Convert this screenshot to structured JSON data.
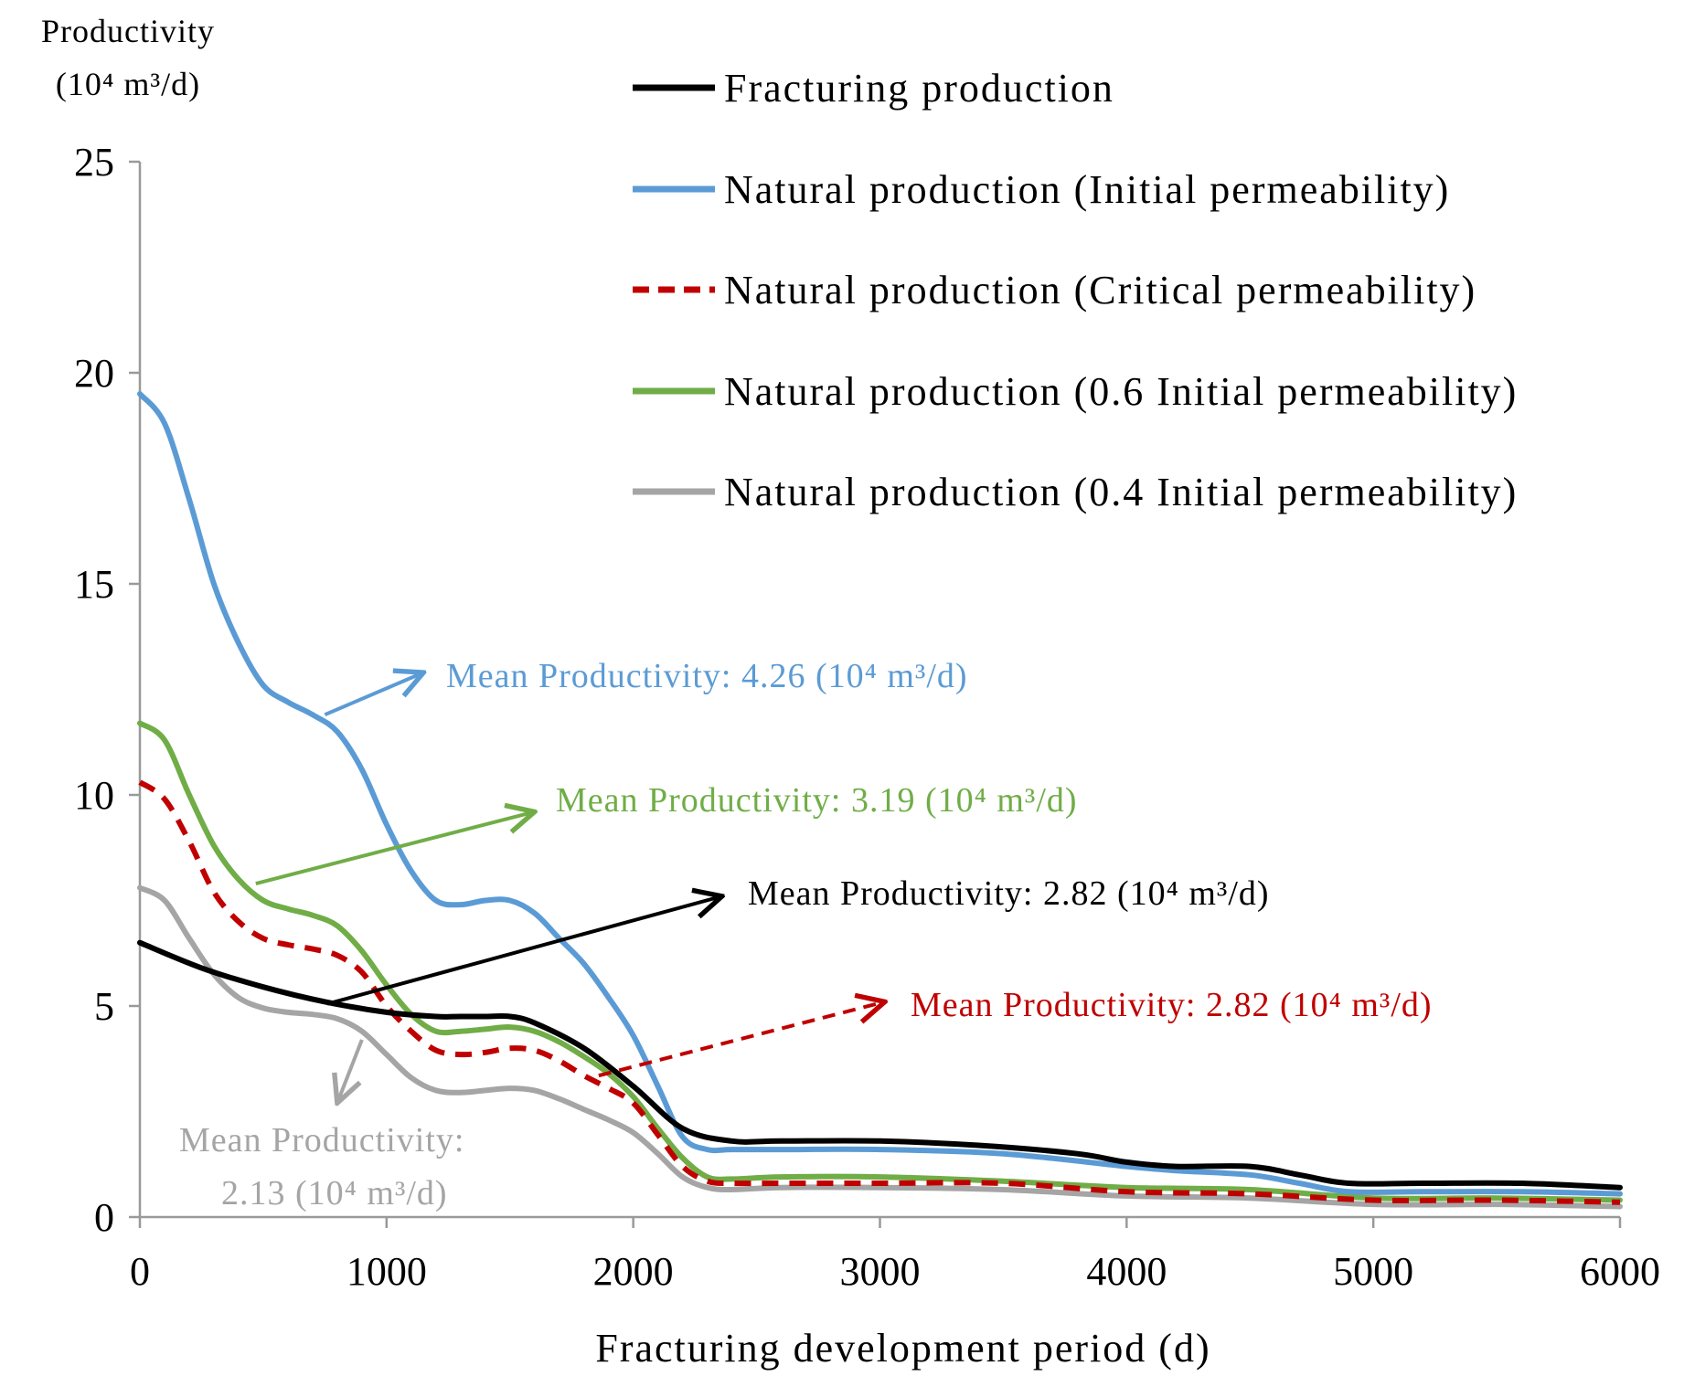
{
  "chart_data": {
    "type": "line",
    "title": "",
    "ylabel_line1": "Productivity",
    "ylabel_unit": "(10⁴ m³/d)",
    "xlabel": "Fracturing development period (d)",
    "xlim": [
      0,
      6000
    ],
    "ylim": [
      0,
      25
    ],
    "x_ticks": [
      "0",
      "1000",
      "2000",
      "3000",
      "4000",
      "5000",
      "6000"
    ],
    "y_ticks": [
      "0",
      "5",
      "10",
      "15",
      "20",
      "25"
    ],
    "grid": false,
    "legend_position": "top-right",
    "series": [
      {
        "name": "Fracturing production",
        "color": "#000000",
        "dashed": false,
        "x": [
          0,
          250,
          500,
          750,
          1000,
          1200,
          1300,
          1400,
          1500,
          1600,
          1800,
          2000,
          2200,
          2400,
          2600,
          3000,
          3400,
          3800,
          4000,
          4200,
          4500,
          4700,
          4900,
          5200,
          5600,
          6000
        ],
        "y": [
          6.5,
          5.9,
          5.45,
          5.1,
          4.85,
          4.75,
          4.75,
          4.75,
          4.75,
          4.6,
          4.0,
          3.1,
          2.1,
          1.8,
          1.8,
          1.8,
          1.7,
          1.5,
          1.3,
          1.2,
          1.2,
          1.0,
          0.8,
          0.8,
          0.8,
          0.7
        ]
      },
      {
        "name": "Natural production (Initial permeability)",
        "color": "#5b9bd5",
        "dashed": false,
        "x": [
          0,
          100,
          200,
          300,
          400,
          500,
          600,
          700,
          800,
          900,
          1000,
          1100,
          1200,
          1300,
          1400,
          1500,
          1600,
          1700,
          1800,
          1900,
          2000,
          2100,
          2200,
          2300,
          2400,
          2600,
          3000,
          3500,
          4000,
          4200,
          4500,
          4700,
          4900,
          5200,
          5600,
          6000
        ],
        "y": [
          19.5,
          18.8,
          17.0,
          15.0,
          13.6,
          12.6,
          12.2,
          11.9,
          11.5,
          10.6,
          9.3,
          8.2,
          7.5,
          7.4,
          7.5,
          7.5,
          7.2,
          6.6,
          6.0,
          5.2,
          4.3,
          3.1,
          1.9,
          1.6,
          1.6,
          1.6,
          1.6,
          1.5,
          1.2,
          1.1,
          1.0,
          0.8,
          0.6,
          0.6,
          0.6,
          0.55
        ]
      },
      {
        "name": "Natural production (Critical permeability)",
        "color": "#c00000",
        "dashed": true,
        "x": [
          0,
          100,
          200,
          300,
          400,
          500,
          600,
          700,
          800,
          900,
          1000,
          1100,
          1200,
          1300,
          1400,
          1500,
          1600,
          1700,
          1800,
          1900,
          2000,
          2100,
          2200,
          2300,
          2400,
          2600,
          3000,
          3500,
          4000,
          4500,
          5000,
          5500,
          6000
        ],
        "y": [
          10.3,
          9.9,
          8.9,
          7.7,
          7.0,
          6.6,
          6.45,
          6.35,
          6.2,
          5.8,
          5.0,
          4.4,
          3.95,
          3.85,
          3.9,
          4.0,
          3.95,
          3.7,
          3.35,
          3.05,
          2.7,
          1.95,
          1.2,
          0.85,
          0.8,
          0.8,
          0.8,
          0.8,
          0.6,
          0.55,
          0.4,
          0.4,
          0.35
        ]
      },
      {
        "name": "Natural production (0.6 Initial permeability)",
        "color": "#70ad47",
        "dashed": false,
        "x": [
          0,
          100,
          200,
          300,
          400,
          500,
          600,
          700,
          800,
          900,
          1000,
          1100,
          1200,
          1300,
          1400,
          1500,
          1600,
          1700,
          1800,
          1900,
          2000,
          2100,
          2200,
          2300,
          2400,
          2600,
          3000,
          3500,
          4000,
          4500,
          5000,
          5500,
          6000
        ],
        "y": [
          11.7,
          11.3,
          10.0,
          8.8,
          8.0,
          7.5,
          7.3,
          7.15,
          6.9,
          6.3,
          5.5,
          4.8,
          4.4,
          4.4,
          4.45,
          4.5,
          4.4,
          4.15,
          3.8,
          3.4,
          2.85,
          2.1,
          1.4,
          0.95,
          0.9,
          0.95,
          0.95,
          0.85,
          0.7,
          0.65,
          0.45,
          0.45,
          0.4
        ]
      },
      {
        "name": "Natural production (0.4 Initial permeability)",
        "color": "#a5a5a5",
        "dashed": false,
        "x": [
          0,
          100,
          200,
          300,
          400,
          500,
          600,
          700,
          800,
          900,
          1000,
          1100,
          1200,
          1300,
          1400,
          1500,
          1600,
          1700,
          1800,
          1900,
          2000,
          2100,
          2200,
          2300,
          2400,
          2600,
          3000,
          3500,
          4000,
          4500,
          5000,
          5500,
          6000
        ],
        "y": [
          7.8,
          7.5,
          6.6,
          5.75,
          5.2,
          4.95,
          4.85,
          4.8,
          4.7,
          4.4,
          3.85,
          3.3,
          3.0,
          2.95,
          3.0,
          3.05,
          3.0,
          2.8,
          2.55,
          2.3,
          2.0,
          1.5,
          0.95,
          0.7,
          0.65,
          0.7,
          0.7,
          0.65,
          0.5,
          0.45,
          0.3,
          0.3,
          0.25
        ]
      }
    ],
    "annotations": [
      {
        "series": 1,
        "text": "Mean Productivity: 4.26 (10⁴ m³/d)",
        "color": "#5b9bd5",
        "dashed": false,
        "from": [
          750,
          11.9
        ],
        "to": [
          1150,
          12.9
        ]
      },
      {
        "series": 3,
        "text": "Mean Productivity: 3.19 (10⁴ m³/d)",
        "color": "#70ad47",
        "dashed": false,
        "from": [
          470,
          7.9
        ],
        "to": [
          1600,
          9.6
        ]
      },
      {
        "series": 0,
        "text": "Mean Productivity: 2.82 (10⁴ m³/d)",
        "color": "#000000",
        "dashed": false,
        "from": [
          760,
          5.05
        ],
        "to": [
          2360,
          7.6
        ]
      },
      {
        "series": 2,
        "text": "Mean Productivity: 2.82 (10⁴ m³/d)",
        "color": "#c00000",
        "dashed": true,
        "from": [
          1860,
          3.35
        ],
        "to": [
          3020,
          5.1
        ]
      },
      {
        "series": 4,
        "text_line1": "Mean Productivity:",
        "text_line2": "2.13 (10⁴ m³/d)",
        "color": "#a5a5a5",
        "dashed": false,
        "from": [
          900,
          4.2
        ],
        "to": [
          800,
          2.7
        ]
      }
    ]
  }
}
